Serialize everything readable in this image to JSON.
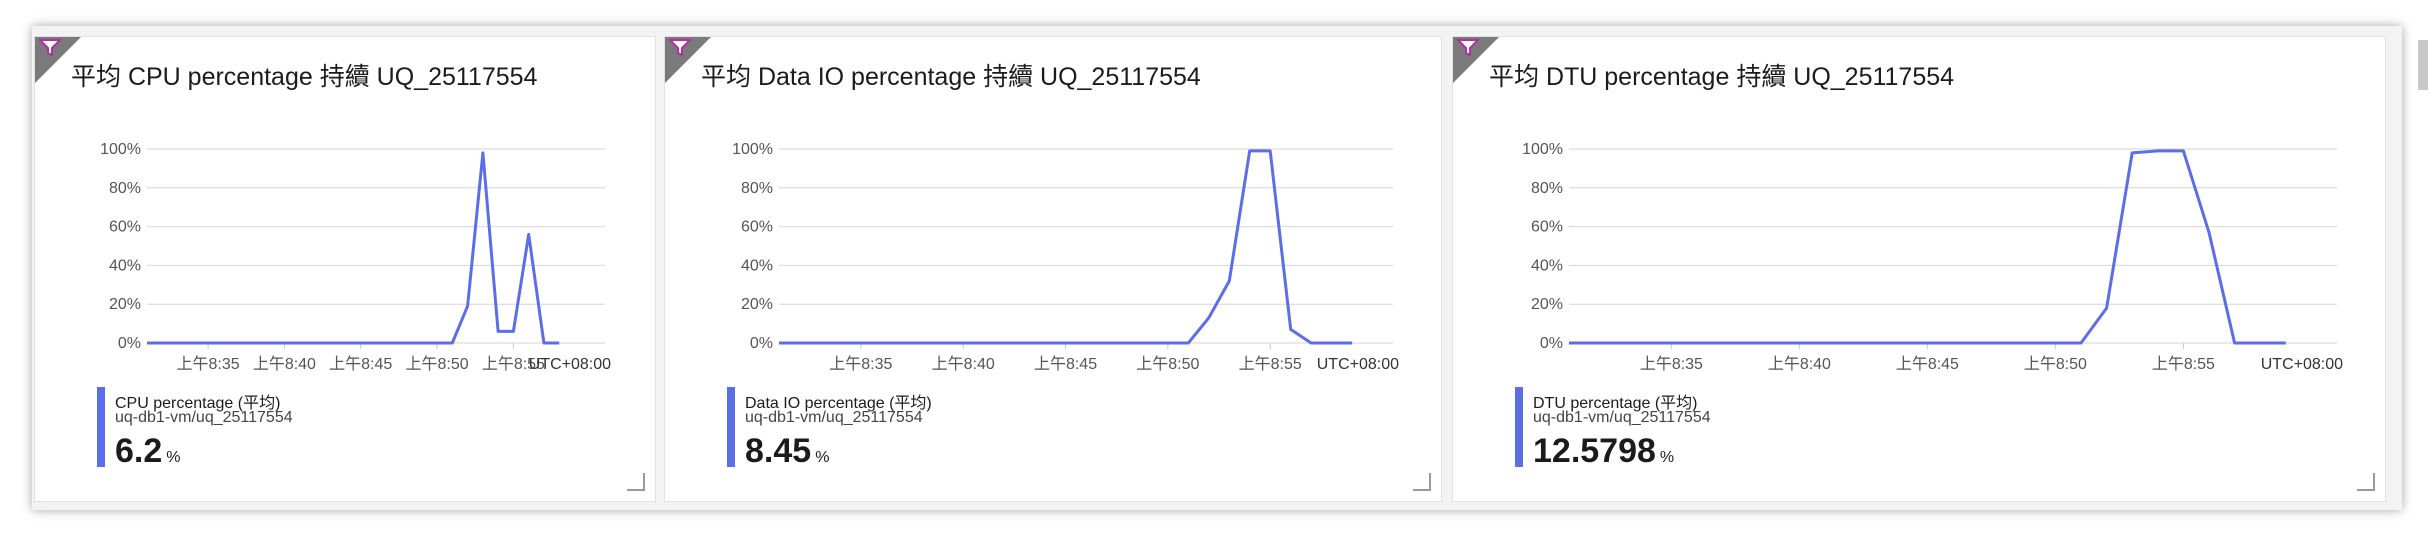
{
  "tiles": [
    {
      "title": "平均 CPU percentage 持續 UQ_25117554",
      "metric_name": "CPU percentage (平均)",
      "resource": "uq-db1-vm/uq_25117554",
      "value": "6.2",
      "unit": "%"
    },
    {
      "title": "平均 Data IO percentage 持續 UQ_25117554",
      "metric_name": "Data IO percentage (平均)",
      "resource": "uq-db1-vm/uq_25117554",
      "value": "8.45",
      "unit": "%"
    },
    {
      "title": "平均 DTU percentage 持續 UQ_25117554",
      "metric_name": "DTU percentage (平均)",
      "resource": "uq-db1-vm/uq_25117554",
      "value": "12.5798",
      "unit": "%"
    }
  ],
  "chart_data": [
    {
      "type": "line",
      "title": "平均 CPU percentage 持續 UQ_25117554",
      "x_ticks": [
        "上午8:35",
        "上午8:40",
        "上午8:45",
        "上午8:50",
        "上午8:55"
      ],
      "timezone_label": "UTC+08:00",
      "y_ticks": [
        "0%",
        "20%",
        "40%",
        "60%",
        "80%",
        "100%"
      ],
      "ylim": [
        0,
        100
      ],
      "xlim": [
        "8:31",
        "9:01"
      ],
      "grid": true,
      "color": "#5b6ee8",
      "series": [
        {
          "name": "CPU percentage (平均)",
          "x": [
            "8:31",
            "8:51",
            "8:52",
            "8:53",
            "8:54",
            "8:55",
            "8:56",
            "8:57",
            "8:58"
          ],
          "y": [
            0,
            0,
            19,
            98,
            6,
            6,
            56,
            0,
            0
          ]
        }
      ]
    },
    {
      "type": "line",
      "title": "平均 Data IO percentage 持續 UQ_25117554",
      "x_ticks": [
        "上午8:35",
        "上午8:40",
        "上午8:45",
        "上午8:50",
        "上午8:55"
      ],
      "timezone_label": "UTC+08:00",
      "y_ticks": [
        "0%",
        "20%",
        "40%",
        "60%",
        "80%",
        "100%"
      ],
      "ylim": [
        0,
        100
      ],
      "xlim": [
        "8:31",
        "9:01"
      ],
      "grid": true,
      "color": "#5b6ee8",
      "series": [
        {
          "name": "Data IO percentage (平均)",
          "x": [
            "8:31",
            "8:51",
            "8:52",
            "8:53",
            "8:54",
            "8:55",
            "8:56",
            "8:57",
            "8:58",
            "8:59"
          ],
          "y": [
            0,
            0,
            13,
            32,
            99,
            99,
            7,
            0,
            0,
            0
          ]
        }
      ]
    },
    {
      "type": "line",
      "title": "平均 DTU percentage 持續 UQ_25117554",
      "x_ticks": [
        "上午8:35",
        "上午8:40",
        "上午8:45",
        "上午8:50",
        "上午8:55"
      ],
      "timezone_label": "UTC+08:00",
      "y_ticks": [
        "0%",
        "20%",
        "40%",
        "60%",
        "80%",
        "100%"
      ],
      "ylim": [
        0,
        100
      ],
      "xlim": [
        "8:31",
        "9:01"
      ],
      "grid": true,
      "color": "#5b6ee8",
      "series": [
        {
          "name": "DTU percentage (平均)",
          "x": [
            "8:31",
            "8:51",
            "8:52",
            "8:53",
            "8:54",
            "8:55",
            "8:56",
            "8:57",
            "8:58",
            "8:59"
          ],
          "y": [
            0,
            0,
            18,
            98,
            99,
            99,
            57,
            0,
            0,
            0
          ]
        }
      ]
    }
  ]
}
